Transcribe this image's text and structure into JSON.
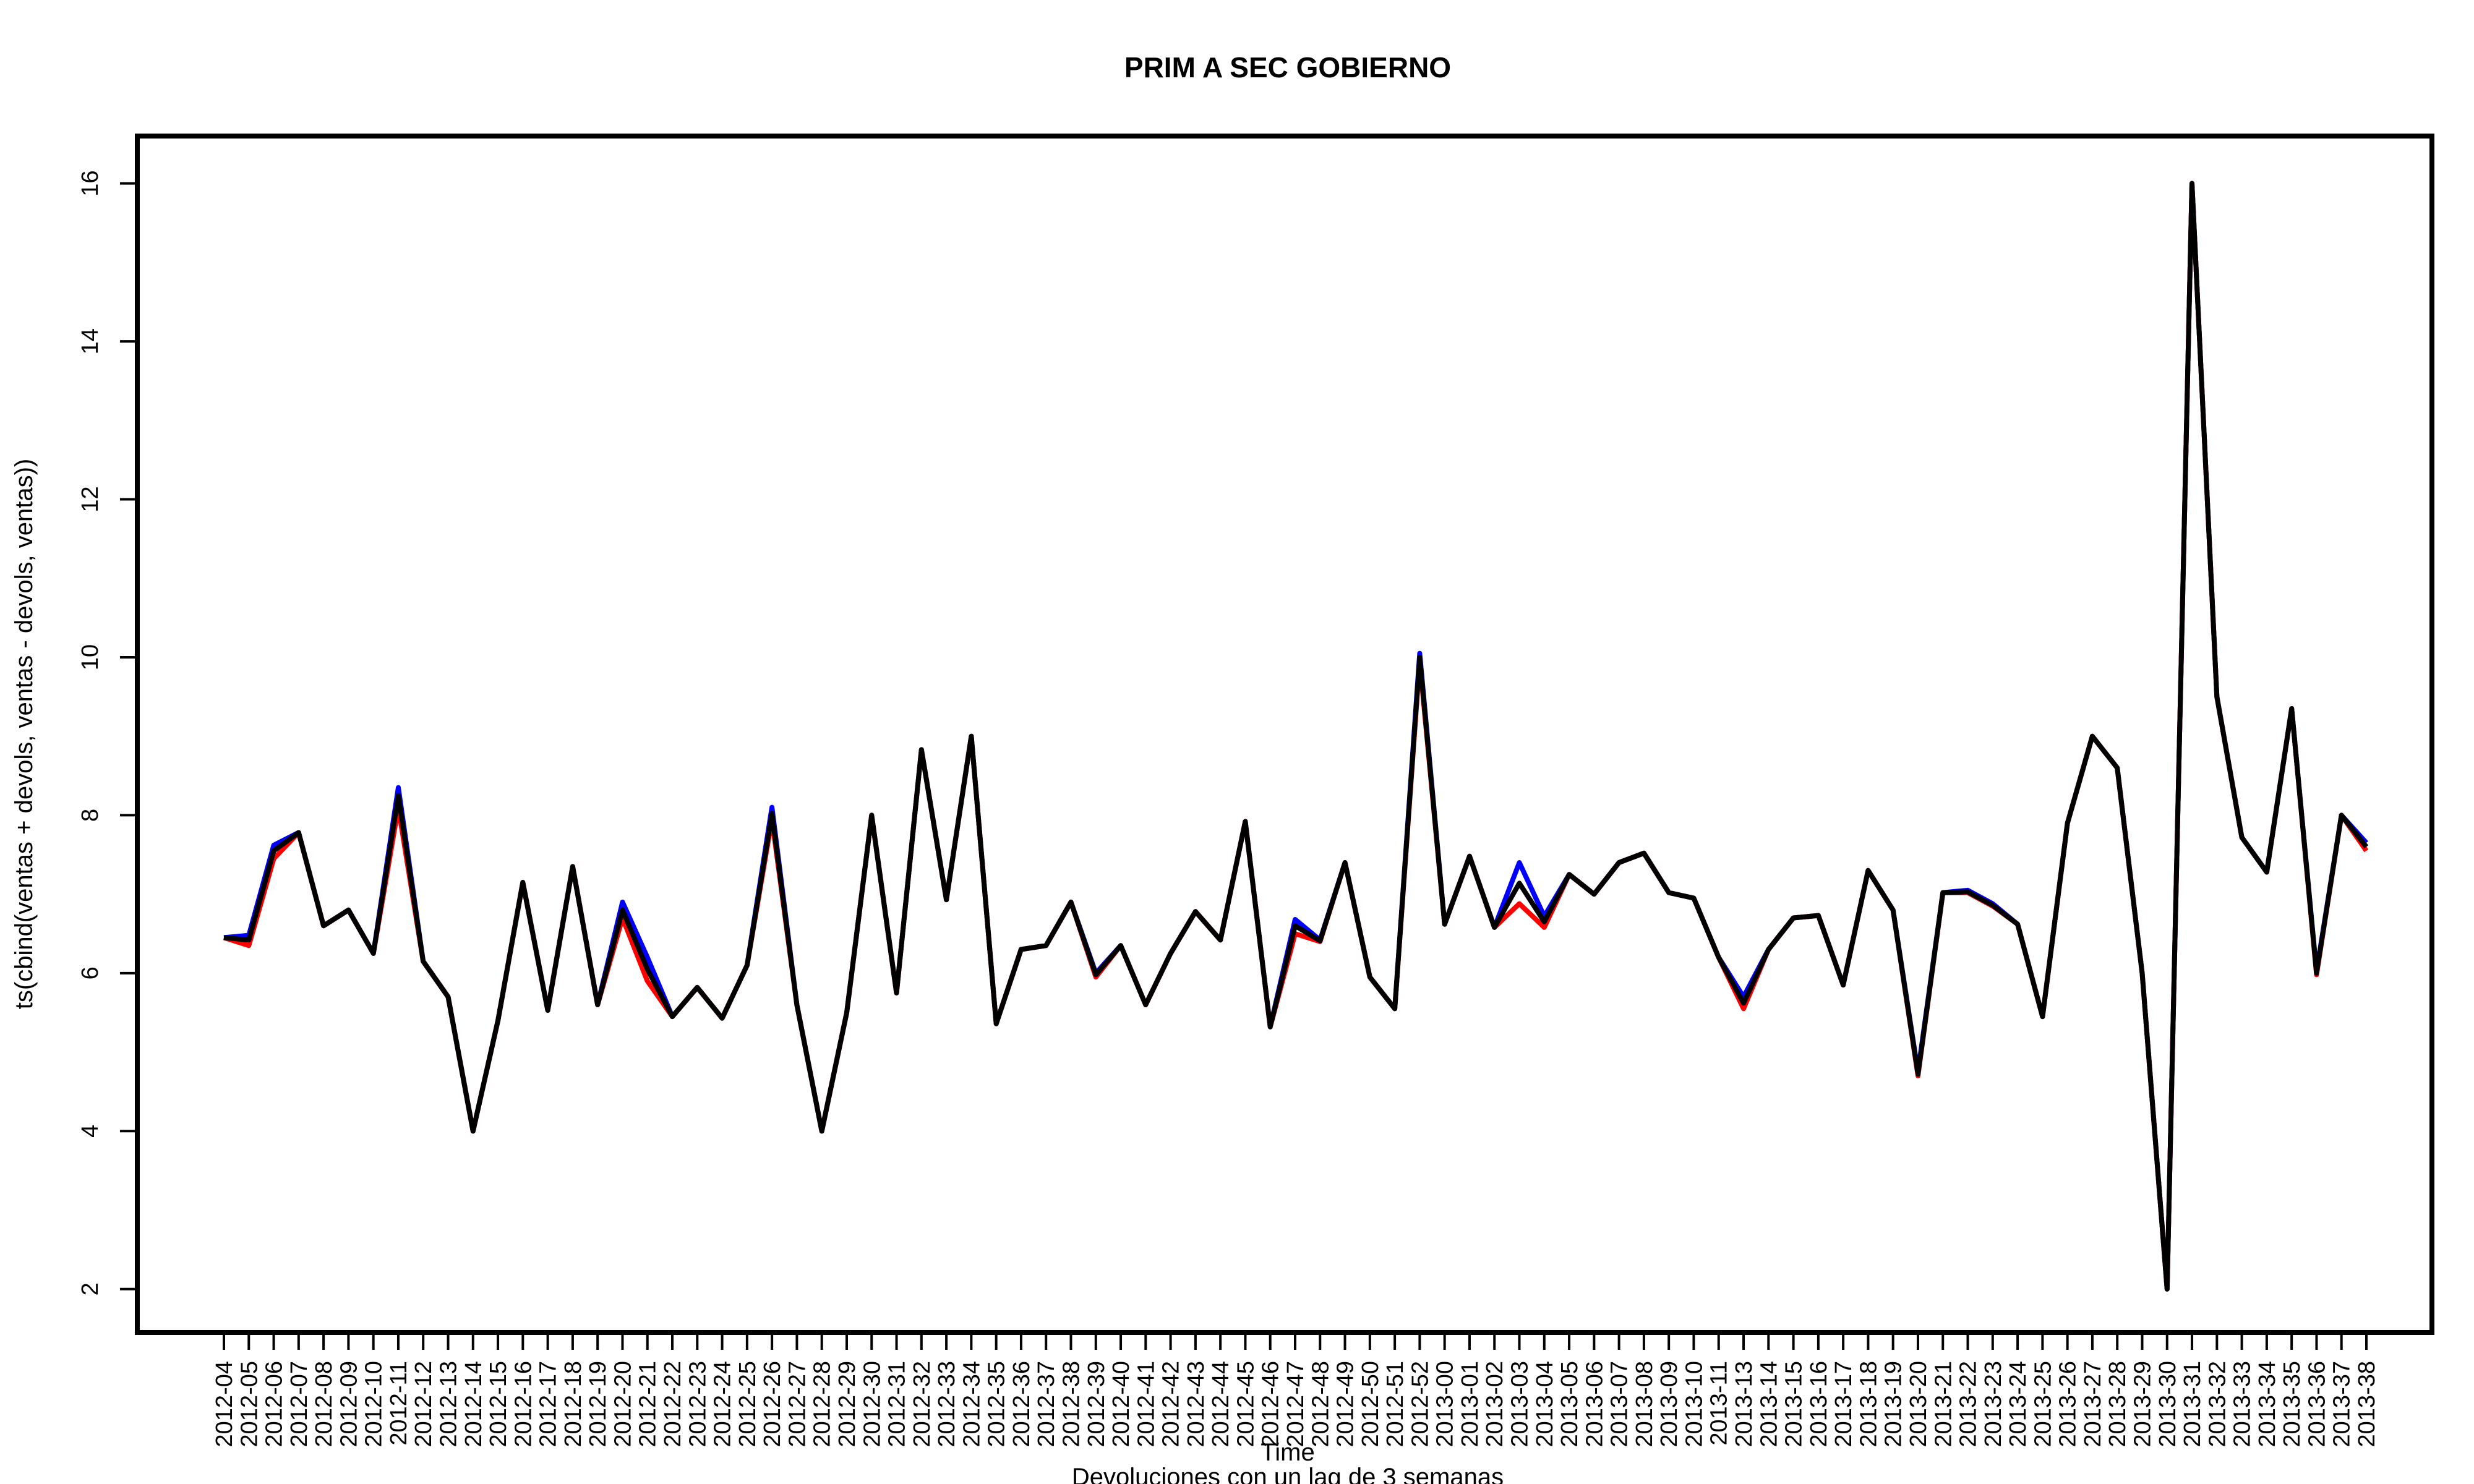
{
  "chart_data": {
    "type": "line",
    "title": "PRIM A SEC GOBIERNO",
    "xlabel": "Time",
    "ylabel": "ts(cbind(ventas + devols, ventas - devols, ventas))",
    "note": "Devoluciones con un lag de 3 semanas",
    "ylim": [
      1.45,
      16.6
    ],
    "yticks": [
      "2",
      "4",
      "6",
      "8",
      "10",
      "12",
      "14",
      "16"
    ],
    "grid": false,
    "legend": "none",
    "categories": [
      "2012-04",
      "2012-05",
      "2012-06",
      "2012-07",
      "2012-08",
      "2012-09",
      "2012-10",
      "2012-11",
      "2012-12",
      "2012-13",
      "2012-14",
      "2012-15",
      "2012-16",
      "2012-17",
      "2012-18",
      "2012-19",
      "2012-20",
      "2012-21",
      "2012-22",
      "2012-23",
      "2012-24",
      "2012-25",
      "2012-26",
      "2012-27",
      "2012-28",
      "2012-29",
      "2012-30",
      "2012-31",
      "2012-32",
      "2012-33",
      "2012-34",
      "2012-35",
      "2012-36",
      "2012-37",
      "2012-38",
      "2012-39",
      "2012-40",
      "2012-41",
      "2012-42",
      "2012-43",
      "2012-44",
      "2012-45",
      "2012-46",
      "2012-47",
      "2012-48",
      "2012-49",
      "2012-50",
      "2012-51",
      "2012-52",
      "2013-00",
      "2013-01",
      "2013-02",
      "2013-03",
      "2013-04",
      "2013-05",
      "2013-06",
      "2013-07",
      "2013-08",
      "2013-09",
      "2013-10",
      "2013-11",
      "2013-13",
      "2013-14",
      "2013-15",
      "2013-16",
      "2013-17",
      "2013-18",
      "2013-19",
      "2013-20",
      "2013-21",
      "2013-22",
      "2013-23",
      "2013-24",
      "2013-25",
      "2013-26",
      "2013-27",
      "2013-28",
      "2013-29",
      "2013-30",
      "2013-31",
      "2013-32",
      "2013-33",
      "2013-34",
      "2013-35",
      "2013-36",
      "2013-37",
      "2013-38"
    ],
    "series": [
      {
        "color": "#0000ff",
        "values": [
          6.45,
          6.48,
          7.62,
          7.78,
          6.6,
          6.8,
          6.25,
          8.35,
          6.15,
          5.7,
          4.0,
          5.4,
          7.15,
          5.53,
          7.35,
          5.6,
          6.9,
          6.2,
          5.45,
          5.82,
          5.43,
          6.1,
          8.1,
          5.6,
          4.0,
          5.5,
          8.0,
          5.75,
          8.83,
          6.93,
          9.0,
          5.36,
          6.3,
          6.35,
          6.9,
          6.0,
          6.35,
          5.6,
          6.25,
          6.78,
          6.42,
          7.92,
          5.32,
          6.68,
          6.42,
          7.4,
          5.95,
          5.55,
          10.05,
          6.62,
          7.48,
          6.58,
          7.4,
          6.72,
          7.25,
          7.0,
          7.4,
          7.52,
          7.02,
          6.95,
          6.2,
          5.7,
          6.3,
          6.7,
          6.73,
          5.85,
          7.3,
          6.8,
          4.75,
          7.02,
          7.05,
          6.88,
          6.62,
          5.45,
          7.9,
          9.0,
          8.6,
          6.0,
          2.0,
          16.0,
          9.5,
          7.72,
          7.28,
          9.35,
          6.02,
          8.0,
          7.65
        ]
      },
      {
        "color": "#ff0000",
        "values": [
          6.45,
          6.35,
          7.45,
          7.78,
          6.6,
          6.8,
          6.25,
          8.1,
          6.15,
          5.7,
          4.0,
          5.4,
          7.15,
          5.53,
          7.35,
          5.6,
          6.7,
          5.9,
          5.45,
          5.82,
          5.43,
          6.1,
          7.95,
          5.6,
          4.0,
          5.5,
          8.0,
          5.75,
          8.83,
          6.93,
          9.0,
          5.36,
          6.3,
          6.35,
          6.9,
          5.95,
          6.35,
          5.6,
          6.25,
          6.78,
          6.42,
          7.92,
          5.32,
          6.5,
          6.4,
          7.4,
          5.95,
          5.55,
          9.95,
          6.62,
          7.48,
          6.58,
          6.88,
          6.58,
          7.25,
          7.0,
          7.4,
          7.52,
          7.02,
          6.95,
          6.2,
          5.55,
          6.3,
          6.7,
          6.73,
          5.85,
          7.3,
          6.8,
          4.7,
          7.02,
          7.02,
          6.85,
          6.62,
          5.45,
          7.9,
          9.0,
          8.6,
          6.0,
          2.0,
          16.0,
          9.5,
          7.72,
          7.28,
          9.35,
          5.98,
          8.0,
          7.55
        ]
      },
      {
        "color": "#000000",
        "values": [
          6.45,
          6.42,
          7.55,
          7.78,
          6.6,
          6.8,
          6.25,
          8.25,
          6.15,
          5.7,
          4.0,
          5.4,
          7.15,
          5.53,
          7.35,
          5.6,
          6.8,
          6.05,
          5.45,
          5.82,
          5.43,
          6.1,
          8.02,
          5.6,
          4.0,
          5.5,
          8.0,
          5.75,
          8.83,
          6.93,
          9.0,
          5.36,
          6.3,
          6.35,
          6.9,
          5.98,
          6.35,
          5.6,
          6.25,
          6.78,
          6.42,
          7.92,
          5.32,
          6.6,
          6.41,
          7.4,
          5.95,
          5.55,
          10.0,
          6.62,
          7.48,
          6.58,
          7.14,
          6.65,
          7.25,
          7.0,
          7.4,
          7.52,
          7.02,
          6.95,
          6.2,
          5.62,
          6.3,
          6.7,
          6.73,
          5.85,
          7.3,
          6.8,
          4.72,
          7.02,
          7.03,
          6.86,
          6.62,
          5.45,
          7.9,
          9.0,
          8.6,
          6.0,
          2.0,
          16.0,
          9.5,
          7.72,
          7.28,
          9.35,
          6.0,
          8.0,
          7.6
        ]
      }
    ]
  }
}
